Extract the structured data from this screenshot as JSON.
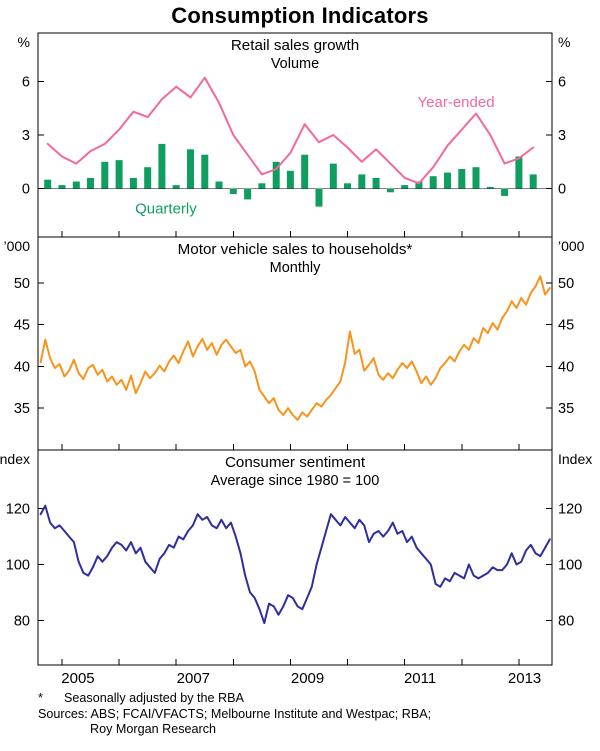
{
  "title": "Consumption Indicators",
  "x_axis": {
    "lim": [
      2004.58,
      2013.58
    ],
    "tick_years": [
      2005,
      2006,
      2007,
      2008,
      2009,
      2010,
      2011,
      2012,
      2013
    ],
    "labels": [
      "2005",
      "2007",
      "2009",
      "2011",
      "2013"
    ],
    "label_years": [
      2005.28,
      2007.3,
      2009.3,
      2011.27,
      2013.1
    ]
  },
  "chart_data": [
    {
      "type": "bar+line",
      "title": "Retail sales growth",
      "subtitle": "Volume",
      "unit": "%",
      "ylim": [
        -2.7,
        8.7
      ],
      "yticks": [
        0,
        3,
        6
      ],
      "zero_line": true,
      "series": [
        {
          "name": "Quarterly",
          "type": "bar",
          "color": "#0f9e60",
          "x_start": 2004.75,
          "x_step": 0.25,
          "label_pos": [
            2006.82,
            -1.4
          ],
          "values": [
            0.5,
            0.2,
            0.4,
            0.6,
            1.5,
            1.6,
            0.6,
            1.2,
            2.5,
            0.2,
            2.2,
            1.9,
            0.4,
            -0.3,
            -0.6,
            0.3,
            1.5,
            1.0,
            1.9,
            -1.0,
            1.4,
            0.3,
            0.8,
            0.6,
            -0.2,
            0.2,
            0.4,
            0.7,
            0.9,
            1.1,
            1.2,
            0.1,
            -0.4,
            1.8,
            0.8
          ]
        },
        {
          "name": "Year-ended",
          "type": "line",
          "color": "#f4679f",
          "x_start": 2004.75,
          "x_step": 0.25,
          "label_pos": [
            2011.9,
            4.57
          ],
          "values": [
            2.5,
            1.8,
            1.4,
            2.1,
            2.5,
            3.3,
            4.3,
            4.0,
            5.0,
            5.7,
            5.1,
            6.2,
            4.8,
            3.0,
            1.9,
            0.8,
            1.1,
            2.0,
            3.6,
            2.6,
            3.0,
            2.3,
            1.5,
            2.2,
            1.4,
            0.6,
            0.3,
            1.2,
            2.4,
            3.3,
            4.2,
            3.0,
            1.4,
            1.7,
            2.3
          ]
        }
      ]
    },
    {
      "type": "line",
      "title": "Motor vehicle sales to households*",
      "subtitle": "Monthly",
      "unit": "’000",
      "ylim": [
        30,
        55.5
      ],
      "yticks": [
        35,
        40,
        45,
        50
      ],
      "zero_line": false,
      "series": [
        {
          "name": "Motor vehicle sales",
          "type": "line",
          "color": "#f7941e",
          "x_start": 2004.625,
          "x_step": 0.0833333,
          "values": [
            40.5,
            43.2,
            41.0,
            39.8,
            40.3,
            38.8,
            39.5,
            40.8,
            39.2,
            38.5,
            39.8,
            40.2,
            39.0,
            39.6,
            38.2,
            38.8,
            37.8,
            38.4,
            37.2,
            38.9,
            36.8,
            38.0,
            39.4,
            38.6,
            39.2,
            40.1,
            39.4,
            40.6,
            41.3,
            40.4,
            41.8,
            43.0,
            41.2,
            42.4,
            43.3,
            42.0,
            42.8,
            41.4,
            42.6,
            43.2,
            42.4,
            41.6,
            42.0,
            40.0,
            40.6,
            39.4,
            37.2,
            36.4,
            35.6,
            36.2,
            34.8,
            34.2,
            35.0,
            34.2,
            33.6,
            34.5,
            34.0,
            34.8,
            35.6,
            35.2,
            36.0,
            36.6,
            37.4,
            38.2,
            40.5,
            44.2,
            41.5,
            42.0,
            39.5,
            40.2,
            41.0,
            39.0,
            38.4,
            39.2,
            38.6,
            39.6,
            40.4,
            39.8,
            40.6,
            39.4,
            38.0,
            38.8,
            37.8,
            38.6,
            39.8,
            40.4,
            41.2,
            40.6,
            41.8,
            42.6,
            42.0,
            43.4,
            42.8,
            44.6,
            44.0,
            45.2,
            44.4,
            45.8,
            46.6,
            47.8,
            47.0,
            48.2,
            47.4,
            48.8,
            49.6,
            50.8,
            48.6,
            49.4
          ]
        }
      ]
    },
    {
      "type": "line",
      "title": "Consumer sentiment",
      "subtitle": "Average since 1980 = 100",
      "unit": "Index",
      "ylim": [
        64,
        141
      ],
      "yticks": [
        80,
        100,
        120
      ],
      "zero_line": false,
      "series": [
        {
          "name": "Consumer sentiment",
          "type": "line",
          "color": "#2e2e9d",
          "x_start": 2004.625,
          "x_step": 0.0833333,
          "values": [
            118,
            121,
            115,
            113,
            114,
            112,
            110,
            108,
            101,
            97,
            96,
            99,
            103,
            101,
            103,
            106,
            108,
            107,
            105,
            108,
            104,
            106,
            101,
            99,
            97,
            102,
            104,
            107,
            106,
            110,
            109,
            112,
            114,
            118,
            116,
            117,
            114,
            113,
            116,
            113,
            115,
            110,
            104,
            96,
            90,
            88,
            84,
            79,
            86,
            85,
            82,
            85,
            89,
            88,
            85,
            84,
            88,
            92,
            100,
            106,
            112,
            118,
            116,
            114,
            117,
            115,
            113,
            116,
            114,
            108,
            111,
            112,
            110,
            112,
            115,
            111,
            112,
            108,
            110,
            106,
            104,
            102,
            100,
            93,
            92,
            95,
            94,
            97,
            96,
            95,
            100,
            96,
            95,
            96,
            97,
            99,
            98,
            98,
            100,
            104,
            100,
            101,
            105,
            107,
            104,
            103,
            106,
            109
          ]
        }
      ]
    }
  ],
  "footnotes": {
    "asterisk_marker": "*",
    "asterisk_text": "Seasonally adjusted by the RBA",
    "sources_line1": "Sources: ABS; FCAI/VFACTS; Melbourne Institute and Westpac; RBA;",
    "sources_line2": "Roy Morgan Research"
  }
}
